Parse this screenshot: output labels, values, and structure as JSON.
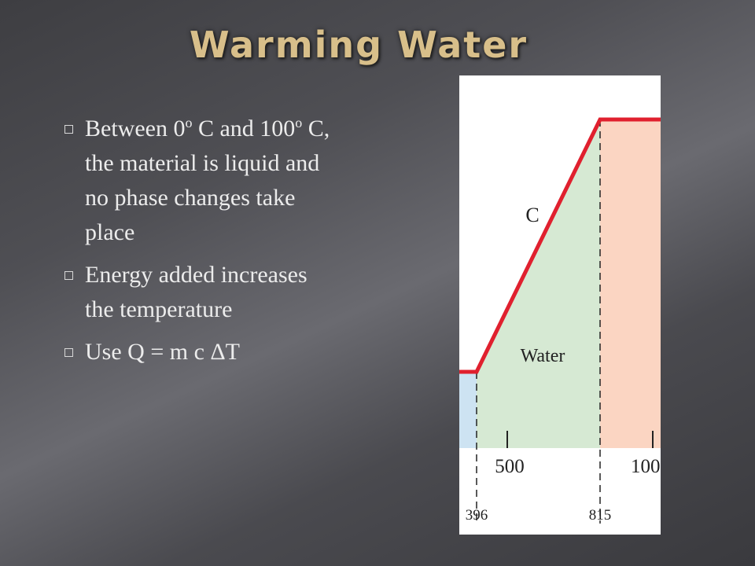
{
  "header": {
    "title": "Warming Water"
  },
  "bullets": [
    [
      "Between 0",
      "o",
      " C and 100",
      "o",
      " C, the material is liquid and no phase changes take place"
    ],
    [
      "Energy added increases the temperature"
    ],
    [
      "Use Q = m c ΔT"
    ]
  ],
  "figure": {
    "labels": [
      "C",
      "Water",
      "500",
      "100",
      "396",
      "815"
    ]
  }
}
